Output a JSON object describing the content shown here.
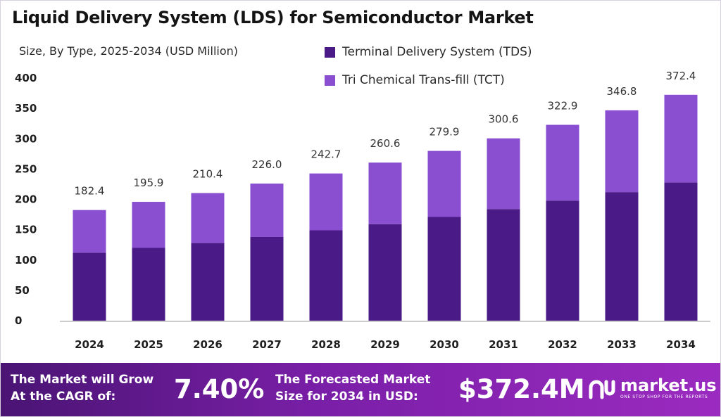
{
  "title": "Liquid Delivery System (LDS) for Semiconductor Market",
  "subtitle": "Size, By Type, 2025-2034 (USD Million)",
  "colors": {
    "tds": "#4a1a86",
    "tct": "#8a4fd0",
    "axis": "#999999"
  },
  "chart_data": {
    "type": "bar",
    "stacked": true,
    "categories": [
      "2024",
      "2025",
      "2026",
      "2027",
      "2028",
      "2029",
      "2030",
      "2031",
      "2032",
      "2033",
      "2034"
    ],
    "series": [
      {
        "name": "Terminal Delivery System (TDS)",
        "values": [
          112,
          120,
          128,
          138,
          149,
          159,
          171,
          184,
          198,
          212,
          228
        ]
      },
      {
        "name": "Tri Chemical Trans-fill (TCT)",
        "values": [
          70.4,
          75.9,
          82.4,
          88.0,
          93.7,
          101.6,
          108.9,
          116.6,
          124.9,
          134.8,
          144.4
        ]
      }
    ],
    "totals": [
      "182.4",
      "195.9",
      "210.4",
      "226.0",
      "242.7",
      "260.6",
      "279.9",
      "300.6",
      "322.9",
      "346.8",
      "372.4"
    ],
    "y_ticks": [
      "0",
      "50",
      "100",
      "150",
      "200",
      "250",
      "300",
      "350",
      "400"
    ],
    "ylim": [
      0,
      400
    ],
    "legend_position": "top",
    "grid": false
  },
  "banner": {
    "cagr_line1": "The Market will Grow",
    "cagr_line2": "At the CAGR of:",
    "cagr_value": "7.40%",
    "forecast_line1": "The Forecasted Market",
    "forecast_line2": "Size for 2034 in USD:",
    "forecast_value": "$372.4M",
    "logo_name": "market.us",
    "logo_tagline": "ONE STOP SHOP FOR THE REPORTS"
  }
}
